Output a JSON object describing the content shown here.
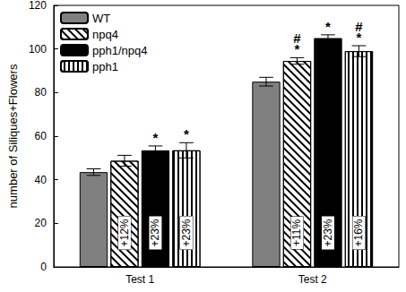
{
  "chart_data": {
    "type": "bar",
    "y_label": "number of Siliques+Flowers",
    "categories": [
      "Test 1",
      "Test 2"
    ],
    "series": [
      {
        "name": "WT",
        "color": "#808080",
        "values": [
          43.5,
          85
        ],
        "errors": [
          1.5,
          2
        ],
        "percent_labels": [
          null,
          null
        ],
        "significance": [
          null,
          null
        ]
      },
      {
        "name": "npq4",
        "color": "#ffffff",
        "values": [
          48.7,
          94.5
        ],
        "errors": [
          2.5,
          1.5
        ],
        "percent_labels": [
          "+12%",
          "+11%"
        ],
        "significance": [
          null,
          "*#"
        ]
      },
      {
        "name": "pph1/npq4",
        "color": "#000000",
        "values": [
          53.5,
          105
        ],
        "errors": [
          2,
          1.5
        ],
        "percent_labels": [
          "+23%",
          "+23%"
        ],
        "significance": [
          "*",
          "*"
        ]
      },
      {
        "name": "pph1",
        "color": "#ffffff",
        "values": [
          53.5,
          99
        ],
        "errors": [
          3.5,
          2.5
        ],
        "percent_labels": [
          "+23%",
          "+16%"
        ],
        "significance": [
          "*",
          "*#"
        ]
      }
    ],
    "ylim": [
      0,
      120
    ],
    "yticks": [
      0,
      20,
      40,
      60,
      80,
      100,
      120
    ],
    "grid": false,
    "legend": "upper left"
  }
}
